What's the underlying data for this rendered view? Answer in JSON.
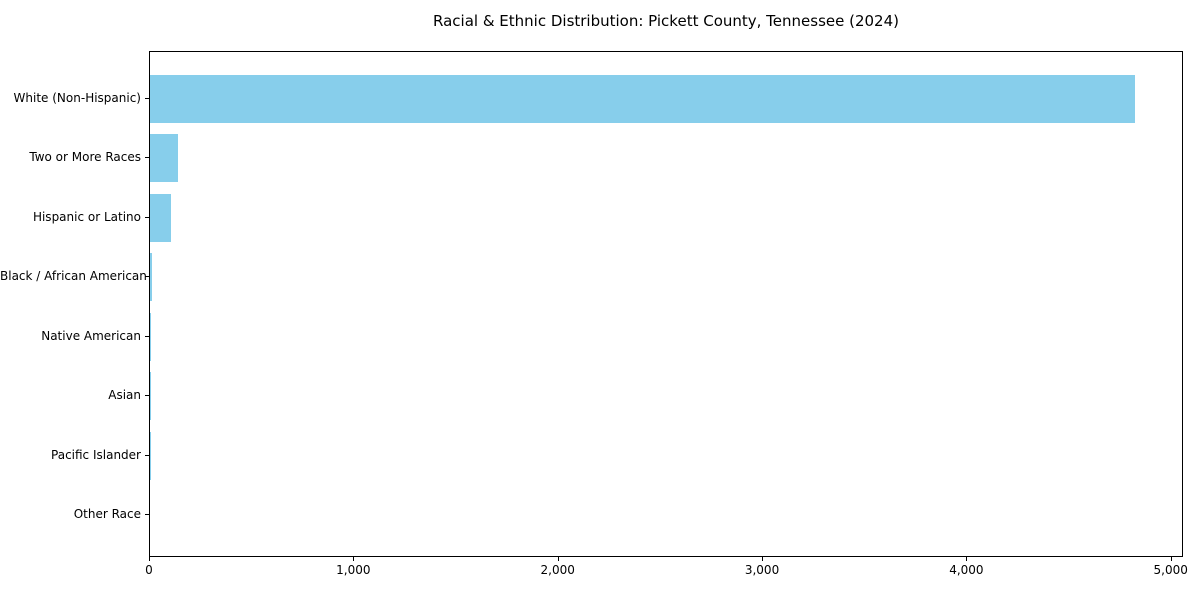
{
  "chart_data": {
    "type": "bar",
    "orientation": "horizontal",
    "title": "Racial & Ethnic Distribution: Pickett County, Tennessee (2024)",
    "categories": [
      "White (Non-Hispanic)",
      "Two or More Races",
      "Hispanic or Latino",
      "Black / African American",
      "Native American",
      "Asian",
      "Pacific Islander",
      "Other Race"
    ],
    "values": [
      4819,
      139,
      104,
      12,
      5,
      3,
      1,
      0
    ],
    "xlabel": "",
    "ylabel": "",
    "xlim": [
      0,
      5060
    ],
    "x_ticks": [
      0,
      1000,
      2000,
      3000,
      4000,
      5000
    ],
    "x_tick_labels": [
      "0",
      "1,000",
      "2,000",
      "3,000",
      "4,000",
      "5,000"
    ],
    "bar_color": "#87CEEB",
    "axis_color": "#000000",
    "text_color": "#000000",
    "grid": false,
    "legend_position": "none"
  }
}
